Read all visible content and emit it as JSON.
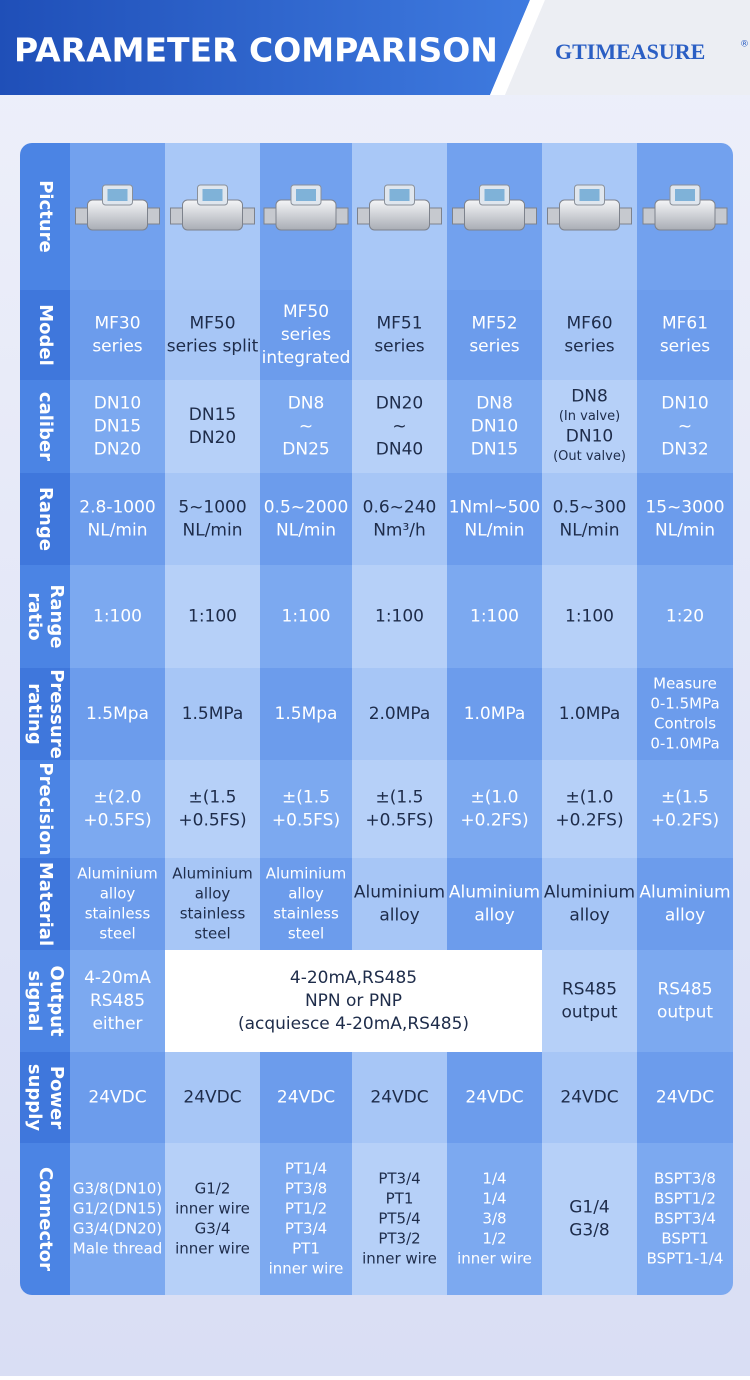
{
  "header": {
    "title": "PARAMETER COMPARISON",
    "brand": "GTIMEASURE",
    "brand_mark": "®"
  },
  "table": {
    "row_labels": [
      [
        "Picture"
      ],
      [
        "Model"
      ],
      [
        "caliber"
      ],
      [
        "Range"
      ],
      [
        "Range",
        "ratio"
      ],
      [
        "Pressure",
        "rating"
      ],
      [
        "Precision"
      ],
      [
        "Material"
      ],
      [
        "Output",
        "signal"
      ],
      [
        "Power",
        "supply"
      ],
      [
        "Connector"
      ]
    ],
    "rows": [
      [
        [
          "MF30",
          "series"
        ],
        [
          "MF50",
          "series split"
        ],
        [
          "MF50",
          "series",
          "integrated"
        ],
        [
          "MF51",
          "series"
        ],
        [
          "MF52",
          "series"
        ],
        [
          "MF60",
          "series"
        ],
        [
          "MF61",
          "series"
        ]
      ],
      [
        [
          "DN10",
          "DN15",
          "DN20"
        ],
        [
          "DN15",
          "DN20"
        ],
        [
          "DN8",
          "~",
          "DN25"
        ],
        [
          "DN20",
          "~",
          "DN40"
        ],
        [
          "DN8",
          "DN10",
          "DN15"
        ],
        [
          "DN8",
          "(In valve)",
          "DN10",
          "(Out valve)"
        ],
        [
          "DN10",
          "~",
          "DN32"
        ]
      ],
      [
        [
          "2.8-1000",
          "NL/min"
        ],
        [
          "5~1000",
          "NL/min"
        ],
        [
          "0.5~2000",
          "NL/min"
        ],
        [
          "0.6~240",
          "Nm³/h"
        ],
        [
          "1Nml~500",
          "NL/min"
        ],
        [
          "0.5~300",
          "NL/min"
        ],
        [
          "15~3000",
          "NL/min"
        ]
      ],
      [
        [
          "1:100"
        ],
        [
          "1:100"
        ],
        [
          "1:100"
        ],
        [
          "1:100"
        ],
        [
          "1:100"
        ],
        [
          "1:100"
        ],
        [
          "1:20"
        ]
      ],
      [
        [
          "1.5Mpa"
        ],
        [
          "1.5MPa"
        ],
        [
          "1.5Mpa"
        ],
        [
          "2.0MPa"
        ],
        [
          "1.0MPa"
        ],
        [
          "1.0MPa"
        ],
        [
          "Measure",
          "0-1.5MPa",
          "Controls",
          "0-1.0MPa"
        ]
      ],
      [
        [
          "±(2.0",
          "+0.5FS)"
        ],
        [
          "±(1.5",
          "+0.5FS)"
        ],
        [
          "±(1.5",
          "+0.5FS)"
        ],
        [
          "±(1.5",
          "+0.5FS)"
        ],
        [
          "±(1.0",
          "+0.2FS)"
        ],
        [
          "±(1.0",
          "+0.2FS)"
        ],
        [
          "±(1.5",
          "+0.2FS)"
        ]
      ],
      [
        [
          "Aluminium",
          "alloy",
          "stainless",
          "steel"
        ],
        [
          "Aluminium",
          "alloy",
          "stainless",
          "steel"
        ],
        [
          "Aluminium",
          "alloy",
          "stainless",
          "steel"
        ],
        [
          "Aluminium",
          "alloy"
        ],
        [
          "Aluminium",
          "alloy"
        ],
        [
          "Aluminium",
          "alloy"
        ],
        [
          "Aluminium",
          "alloy"
        ]
      ],
      [
        [
          "4-20mA",
          "RS485",
          "either"
        ],
        [
          "4-20mA,RS485",
          "NPN or PNP",
          "(acquiesce 4-20mA,RS485)"
        ],
        [
          "RS485",
          "output"
        ],
        [
          "RS485",
          "output"
        ]
      ],
      [
        [
          "24VDC"
        ],
        [
          "24VDC"
        ],
        [
          "24VDC"
        ],
        [
          "24VDC"
        ],
        [
          "24VDC"
        ],
        [
          "24VDC"
        ],
        [
          "24VDC"
        ]
      ],
      [
        [
          "G3/8(DN10)",
          "G1/2(DN15)",
          "G3/4(DN20)",
          "Male thread"
        ],
        [
          "G1/2",
          "inner wire",
          "G3/4",
          "inner wire"
        ],
        [
          "PT1/4",
          "PT3/8",
          "PT1/2",
          "PT3/4",
          "PT1",
          "inner wire"
        ],
        [
          "PT3/4",
          "PT1",
          "PT5/4",
          "PT3/2",
          "inner wire"
        ],
        [
          "1/4",
          "1/4",
          "3/8",
          "1/2",
          "inner wire"
        ],
        [
          "G1/4",
          "G3/8"
        ],
        [
          "BSPT3/8",
          "BSPT1/2",
          "BSPT3/4",
          "BSPT1",
          "BSPT1-1/4"
        ]
      ]
    ]
  }
}
